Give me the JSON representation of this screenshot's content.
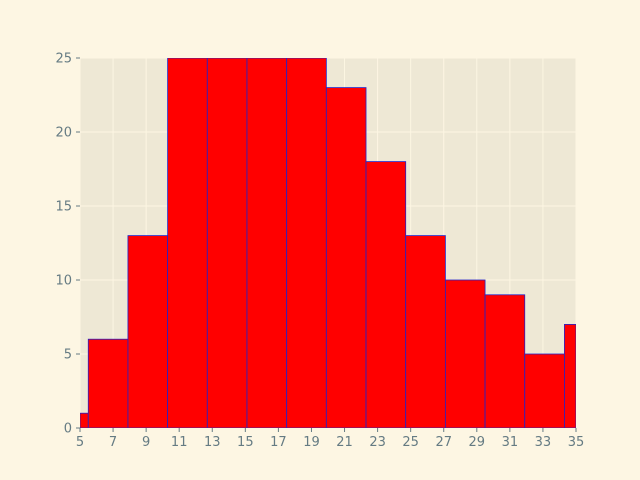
{
  "chart_data": {
    "type": "bar",
    "title": "",
    "xlabel": "",
    "ylabel": "",
    "xlim": [
      5,
      35
    ],
    "ylim": [
      0,
      25
    ],
    "grid": true,
    "x_ticks": [
      5,
      7,
      9,
      11,
      13,
      15,
      17,
      19,
      21,
      23,
      25,
      27,
      29,
      31,
      33,
      35
    ],
    "y_ticks": [
      0,
      5,
      10,
      15,
      20,
      25
    ],
    "bins": [
      {
        "x0": 5.0,
        "x1": 5.5,
        "count": 1
      },
      {
        "x0": 5.5,
        "x1": 7.9,
        "count": 6
      },
      {
        "x0": 7.9,
        "x1": 10.3,
        "count": 13
      },
      {
        "x0": 10.3,
        "x1": 12.7,
        "count": 25
      },
      {
        "x0": 12.7,
        "x1": 15.1,
        "count": 25
      },
      {
        "x0": 15.1,
        "x1": 17.5,
        "count": 25
      },
      {
        "x0": 17.5,
        "x1": 19.9,
        "count": 25
      },
      {
        "x0": 19.9,
        "x1": 22.3,
        "count": 23
      },
      {
        "x0": 22.3,
        "x1": 24.7,
        "count": 18
      },
      {
        "x0": 24.7,
        "x1": 27.1,
        "count": 13
      },
      {
        "x0": 27.1,
        "x1": 29.5,
        "count": 10
      },
      {
        "x0": 29.5,
        "x1": 31.9,
        "count": 9
      },
      {
        "x0": 31.9,
        "x1": 34.3,
        "count": 5
      },
      {
        "x0": 34.3,
        "x1": 35.0,
        "count": 7
      }
    ],
    "colors": {
      "bar_fill": "#ff0000",
      "bar_edge": "#2323c8",
      "plot_background": "#eee8d5",
      "page_background": "#fdf6e3"
    }
  }
}
